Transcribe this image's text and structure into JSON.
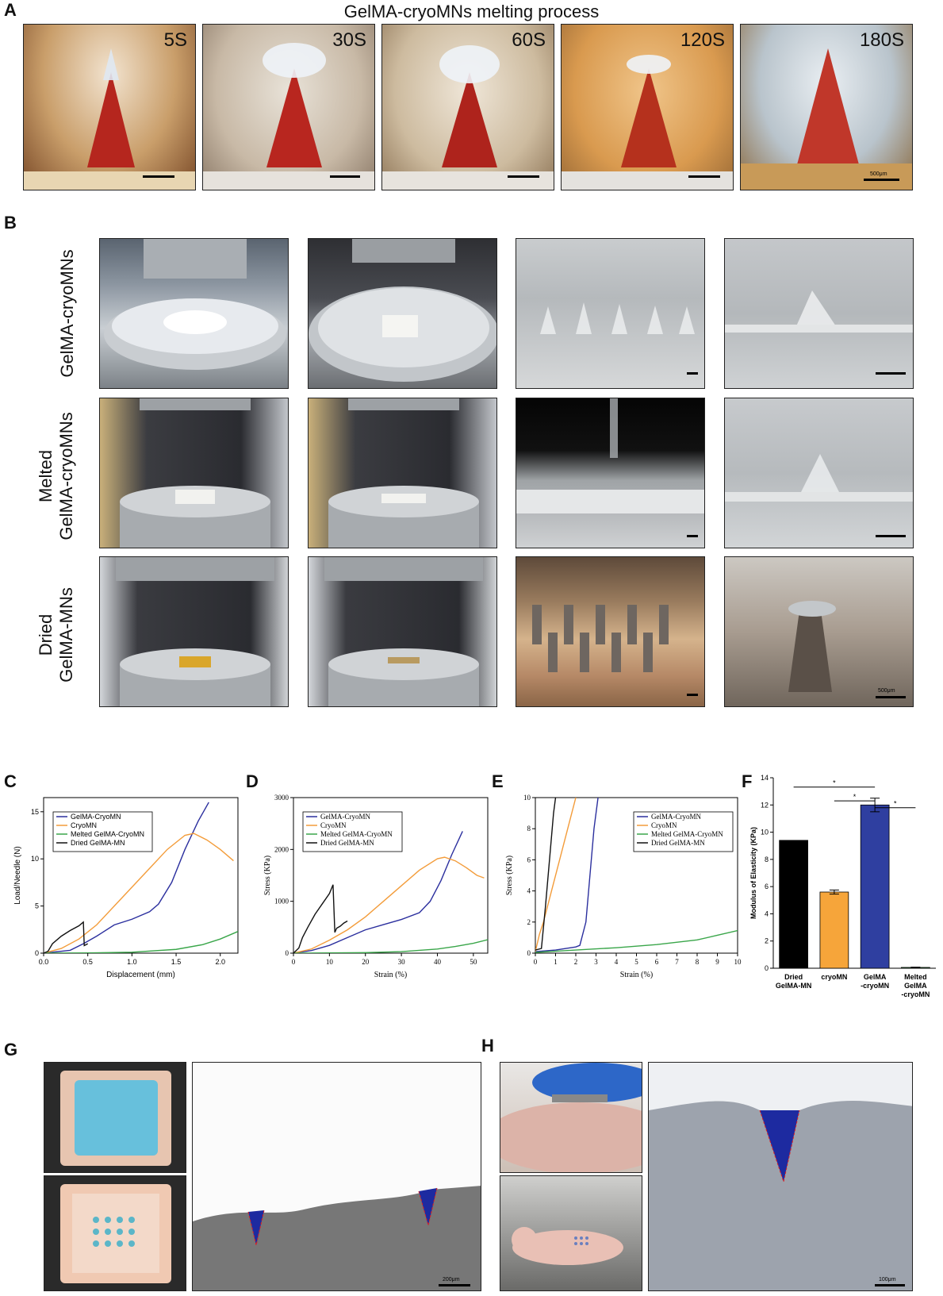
{
  "panels": {
    "A": {
      "letter": "A",
      "title": "GelMA-cryoMNs melting process",
      "times": [
        "5S",
        "30S",
        "60S",
        "120S",
        "180S"
      ],
      "scalebar": "500μm"
    },
    "B": {
      "letter": "B",
      "rows": [
        {
          "line1": "",
          "line2": "GelMA-cryoMNs"
        },
        {
          "line1": "Melted",
          "line2": "GelMA-cryoMNs"
        },
        {
          "line1": "Dried",
          "line2": "GelMA-MNs"
        }
      ],
      "scalebar": "500μm"
    },
    "C": {
      "letter": "C"
    },
    "D": {
      "letter": "D"
    },
    "E": {
      "letter": "E"
    },
    "F": {
      "letter": "F",
      "sig": "*"
    },
    "G": {
      "letter": "G",
      "scalebar": "200μm"
    },
    "H": {
      "letter": "H",
      "scalebar": "100μm"
    }
  },
  "chart_data": [
    {
      "id": "C",
      "type": "line",
      "xlabel": "Displacement (mm)",
      "ylabel": "Load/Needle (N)",
      "xlim": [
        0,
        2.2
      ],
      "ylim": [
        0,
        16.5
      ],
      "xticks": [
        "0.0",
        "0.5",
        "1.0",
        "1.5",
        "2.0"
      ],
      "yticks": [
        "0",
        "5",
        "10",
        "15"
      ],
      "legend": "top-left",
      "series": [
        {
          "name": "GelMA-CryoMN",
          "color": "#2b2f9e",
          "x": [
            0,
            0.3,
            0.45,
            0.6,
            0.8,
            1.0,
            1.2,
            1.3,
            1.45,
            1.6,
            1.75,
            1.87
          ],
          "y": [
            0,
            0.3,
            1.0,
            1.8,
            3.0,
            3.6,
            4.4,
            5.2,
            7.5,
            11.0,
            14.0,
            16.0
          ]
        },
        {
          "name": "CryoMN",
          "color": "#f39c3a",
          "x": [
            0,
            0.2,
            0.4,
            0.6,
            0.8,
            1.0,
            1.2,
            1.4,
            1.6,
            1.7,
            1.85,
            2.0,
            2.15
          ],
          "y": [
            0,
            0.5,
            1.5,
            3.0,
            5.0,
            7.0,
            9.0,
            11.0,
            12.5,
            12.7,
            12.0,
            11.0,
            9.8
          ]
        },
        {
          "name": "Melted GelMA-CryoMN",
          "color": "#3aa64a",
          "x": [
            0,
            0.5,
            1.0,
            1.5,
            1.8,
            2.0,
            2.2
          ],
          "y": [
            0,
            0.02,
            0.1,
            0.4,
            0.9,
            1.5,
            2.3
          ]
        },
        {
          "name": "Dried   GelMA-MN",
          "color": "#111111",
          "x": [
            0,
            0.05,
            0.1,
            0.2,
            0.3,
            0.4,
            0.45,
            0.46,
            0.5
          ],
          "y": [
            0,
            0.2,
            1.0,
            1.8,
            2.4,
            2.9,
            3.3,
            0.8,
            1.0
          ]
        }
      ]
    },
    {
      "id": "D",
      "type": "line",
      "xlabel": "Strain (%)",
      "ylabel": "Stress (KPa)",
      "xlim": [
        0,
        54
      ],
      "ylim": [
        0,
        3000
      ],
      "xticks": [
        "0",
        "10",
        "20",
        "30",
        "40",
        "50"
      ],
      "yticks": [
        "0",
        "1000",
        "2000",
        "3000"
      ],
      "legend": "top-left",
      "series": [
        {
          "name": "GelMA-CryoMN",
          "color": "#2b2f9e",
          "x": [
            0,
            5,
            10,
            15,
            20,
            25,
            30,
            35,
            38,
            41,
            44,
            47
          ],
          "y": [
            0,
            50,
            150,
            300,
            450,
            550,
            650,
            780,
            1000,
            1400,
            1900,
            2350
          ]
        },
        {
          "name": "CryoMN",
          "color": "#f39c3a",
          "x": [
            0,
            5,
            10,
            15,
            20,
            25,
            30,
            35,
            40,
            42,
            45,
            48,
            51,
            53
          ],
          "y": [
            0,
            80,
            250,
            450,
            700,
            1000,
            1300,
            1600,
            1820,
            1850,
            1780,
            1650,
            1500,
            1450
          ]
        },
        {
          "name": "Melted GelMA-CryoMN",
          "color": "#3aa64a",
          "x": [
            0,
            20,
            30,
            40,
            45,
            50,
            54
          ],
          "y": [
            0,
            10,
            30,
            80,
            130,
            190,
            260
          ]
        },
        {
          "name": "Dried   GelMA-MN",
          "color": "#111111",
          "x": [
            0,
            1.5,
            2.5,
            4,
            6,
            8,
            10,
            11,
            11.5,
            12,
            13,
            14,
            15
          ],
          "y": [
            0,
            100,
            300,
            500,
            750,
            950,
            1150,
            1320,
            400,
            480,
            520,
            580,
            620
          ]
        }
      ]
    },
    {
      "id": "E",
      "type": "line",
      "xlabel": "Strain (%)",
      "ylabel": "Stress (KPa)",
      "xlim": [
        0,
        10
      ],
      "ylim": [
        0,
        10
      ],
      "xticks": [
        "0",
        "1",
        "2",
        "3",
        "4",
        "5",
        "6",
        "7",
        "8",
        "9",
        "10"
      ],
      "yticks": [
        "0",
        "2",
        "4",
        "6",
        "8",
        "10"
      ],
      "legend": "top-right",
      "series": [
        {
          "name": "GelMA-CryoMN",
          "color": "#2b2f9e",
          "x": [
            0,
            1,
            2,
            2.2,
            2.5,
            2.7,
            2.9,
            3.1
          ],
          "y": [
            0.1,
            0.2,
            0.4,
            0.5,
            2.0,
            5.0,
            8.0,
            10
          ]
        },
        {
          "name": "CryoMN",
          "color": "#f39c3a",
          "x": [
            0,
            0.2,
            0.4,
            0.8,
            1.2,
            1.6,
            1.9,
            2.0
          ],
          "y": [
            0.1,
            1.2,
            2.0,
            4.0,
            6.0,
            8.0,
            9.5,
            10
          ]
        },
        {
          "name": "Melted GelMA-CryoMN",
          "color": "#3aa64a",
          "x": [
            0,
            2,
            4,
            6,
            8,
            9,
            10
          ],
          "y": [
            0.05,
            0.2,
            0.35,
            0.55,
            0.85,
            1.15,
            1.45
          ]
        },
        {
          "name": "Dried   GelMA-MN",
          "color": "#111111",
          "x": [
            0,
            0.3,
            0.5,
            0.7,
            0.9,
            1.0
          ],
          "y": [
            0.2,
            0.3,
            3.0,
            6.0,
            9.0,
            10
          ]
        }
      ]
    },
    {
      "id": "F",
      "type": "bar",
      "ylabel": "Modulus of Elasticity (KPa)",
      "ylim": [
        0,
        14
      ],
      "yticks": [
        "0",
        "2",
        "4",
        "6",
        "8",
        "10",
        "12",
        "14"
      ],
      "categories": [
        [
          "Dried",
          "GelMA-MN"
        ],
        [
          "cryoMN"
        ],
        [
          "GelMA",
          "-cryoMN"
        ],
        [
          "Melted",
          "GelMA",
          "-cryoMN"
        ]
      ],
      "values": [
        9.4,
        5.6,
        12.0,
        0.06
      ],
      "errors": [
        0,
        0.15,
        0.5,
        0.02
      ],
      "colors": [
        "#000000",
        "#f6a53a",
        "#2f3fa0",
        "#3aa64a"
      ]
    }
  ]
}
